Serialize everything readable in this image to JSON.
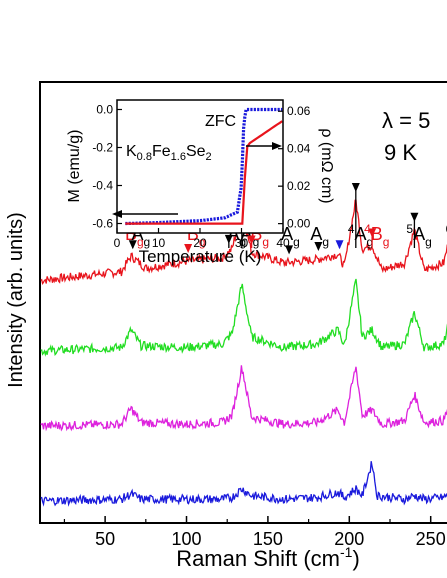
{
  "chart_data": [
    {
      "type": "line",
      "xlabel": "Raman Shift (cm",
      "xlabel_sup": "-1",
      "xlabel_close": ")",
      "ylabel": "Intensity (arb. units)",
      "xlim": [
        10,
        268
      ],
      "x_ticks": [
        50,
        100,
        150,
        200,
        250
      ],
      "conditions": {
        "wavelength_label": "λ = 5",
        "temperature_label": "9 K"
      },
      "series": [
        {
          "color": "#e8141c",
          "offset": 0.55,
          "points": [
            [
              10,
              0
            ],
            [
              60,
              5
            ],
            [
              66,
              14
            ],
            [
              75,
              7
            ],
            [
              100,
              11
            ],
            [
              122,
              13
            ],
            [
              128,
              18
            ],
            [
              134,
              40
            ],
            [
              140,
              16
            ],
            [
              160,
              10
            ],
            [
              180,
              12
            ],
            [
              193,
              15
            ],
            [
              197,
              8
            ],
            [
              204,
              46
            ],
            [
              208,
              18
            ],
            [
              214,
              20
            ],
            [
              220,
              6
            ],
            [
              234,
              10
            ],
            [
              240,
              29
            ],
            [
              246,
              6
            ],
            [
              258,
              10
            ],
            [
              262,
              26
            ],
            [
              265,
              45
            ],
            [
              268,
              44
            ]
          ]
        },
        {
          "color": "#22dd22",
          "offset": 0.39,
          "points": [
            [
              10,
              0
            ],
            [
              60,
              2
            ],
            [
              66,
              12
            ],
            [
              72,
              3
            ],
            [
              100,
              2
            ],
            [
              122,
              4
            ],
            [
              128,
              10
            ],
            [
              134,
              38
            ],
            [
              140,
              8
            ],
            [
              160,
              2
            ],
            [
              180,
              4
            ],
            [
              193,
              12
            ],
            [
              197,
              3
            ],
            [
              204,
              40
            ],
            [
              208,
              8
            ],
            [
              214,
              12
            ],
            [
              220,
              2
            ],
            [
              234,
              4
            ],
            [
              240,
              22
            ],
            [
              246,
              2
            ],
            [
              258,
              4
            ],
            [
              262,
              20
            ],
            [
              265,
              42
            ],
            [
              268,
              40
            ]
          ]
        },
        {
          "color": "#dd22dd",
          "offset": 0.22,
          "points": [
            [
              10,
              0
            ],
            [
              60,
              1
            ],
            [
              66,
              10
            ],
            [
              72,
              2
            ],
            [
              100,
              1
            ],
            [
              122,
              2
            ],
            [
              128,
              6
            ],
            [
              134,
              34
            ],
            [
              140,
              5
            ],
            [
              160,
              1
            ],
            [
              180,
              2
            ],
            [
              193,
              9
            ],
            [
              197,
              2
            ],
            [
              204,
              34
            ],
            [
              208,
              6
            ],
            [
              214,
              9
            ],
            [
              220,
              1
            ],
            [
              234,
              3
            ],
            [
              240,
              18
            ],
            [
              246,
              2
            ],
            [
              258,
              3
            ],
            [
              262,
              14
            ],
            [
              265,
              30
            ],
            [
              268,
              28
            ]
          ]
        },
        {
          "color": "#1a1adc",
          "offset": 0.05,
          "points": [
            [
              10,
              0
            ],
            [
              60,
              1
            ],
            [
              66,
              4
            ],
            [
              72,
              1
            ],
            [
              100,
              1
            ],
            [
              122,
              1
            ],
            [
              128,
              2
            ],
            [
              134,
              7
            ],
            [
              140,
              3
            ],
            [
              160,
              1
            ],
            [
              180,
              2
            ],
            [
              193,
              5
            ],
            [
              197,
              2
            ],
            [
              204,
              7
            ],
            [
              208,
              3
            ],
            [
              214,
              22
            ],
            [
              217,
              3
            ],
            [
              234,
              1
            ],
            [
              240,
              3
            ],
            [
              246,
              1
            ],
            [
              258,
              2
            ],
            [
              262,
              4
            ],
            [
              265,
              9
            ],
            [
              268,
              8
            ]
          ]
        }
      ],
      "annotations": [
        {
          "text": "B",
          "sup": "1",
          "sub": "g",
          "color": "#e8141c",
          "x": 63,
          "arrow": false
        },
        {
          "text": "A",
          "sup": "1",
          "sub": "g",
          "color": "#000000",
          "x": 67,
          "arrow": true
        },
        {
          "text": "B",
          "sup": "2",
          "sub": "g",
          "color": "#e8141c",
          "x": 101,
          "arrow": true
        },
        {
          "text": "A",
          "sup": "2",
          "sub": "g",
          "color": "#000000",
          "x": 126,
          "arrow": true
        },
        {
          "text": "A",
          "sup": "3",
          "sub": "g",
          "color": "#000000",
          "x": 134,
          "arrow": true
        },
        {
          "text": "B",
          "sup": "3",
          "sub": "g",
          "color": "#e8141c",
          "x": 140,
          "arrow": true
        },
        {
          "text": "A",
          "sup": "",
          "sub": "g",
          "color": "#000000",
          "x": 163,
          "arrow": true
        },
        {
          "text": "A",
          "sup": "",
          "sub": "g",
          "color": "#000000",
          "x": 181,
          "arrow": true
        },
        {
          "text": "",
          "sup": "",
          "sub": "",
          "color": "#1a1adc",
          "x": 194,
          "arrow": true
        },
        {
          "text": "A",
          "sup": "4",
          "sub": "g",
          "color": "#000000",
          "x": 204,
          "arrow": true
        },
        {
          "text": "B",
          "sup": "4",
          "sub": "g",
          "color": "#e8141c",
          "x": 214,
          "arrow": true
        },
        {
          "text": "A",
          "sup": "5",
          "sub": "g",
          "color": "#000000",
          "x": 240,
          "arrow": true
        },
        {
          "text": "A",
          "sup": "6",
          "sub": "",
          "color": "#000000",
          "x": 264,
          "arrow": true
        }
      ]
    },
    {
      "type": "line",
      "xlabel": "Temperature (K)",
      "ylabel": "M (emu/g)",
      "ylabel_right": "ρ (mΩ cm)",
      "xlim": [
        0,
        40
      ],
      "ylim": [
        -0.65,
        0.05
      ],
      "ylim_right": [
        -0.005,
        0.066
      ],
      "x_ticks": [
        0,
        10,
        20,
        30,
        40
      ],
      "y_ticks": [
        "0.0",
        "-0.2",
        "-0.4",
        "-0.6"
      ],
      "y_tick_values": [
        0.0,
        -0.2,
        -0.4,
        -0.6
      ],
      "y_ticks_right": [
        "0.00",
        "0.02",
        "0.04",
        "0.06"
      ],
      "y_tick_values_right": [
        0.0,
        0.02,
        0.04,
        0.06
      ],
      "label_zfc": "ZFC",
      "compound": {
        "a": "K",
        "a_sub": "0.8",
        "b": "Fe",
        "b_sub": "1.6",
        "c": "Se",
        "c_sub": "2"
      },
      "series": [
        {
          "name": "M",
          "color": "#1a1adc",
          "points": [
            [
              2,
              -0.6
            ],
            [
              10,
              -0.595
            ],
            [
              20,
              -0.585
            ],
            [
              26,
              -0.57
            ],
            [
              29,
              -0.54
            ],
            [
              30,
              -0.4
            ],
            [
              30.5,
              -0.1
            ],
            [
              31,
              0.0
            ],
            [
              40,
              0.0
            ]
          ]
        },
        {
          "name": "ρ",
          "color": "#e8141c",
          "points": [
            [
              2,
              0.0
            ],
            [
              29,
              0.0
            ],
            [
              30.5,
              0.0
            ],
            [
              31,
              0.04
            ],
            [
              32,
              0.043
            ],
            [
              34,
              0.046
            ],
            [
              36,
              0.049
            ],
            [
              38,
              0.052
            ],
            [
              40,
              0.055
            ]
          ]
        }
      ]
    }
  ]
}
